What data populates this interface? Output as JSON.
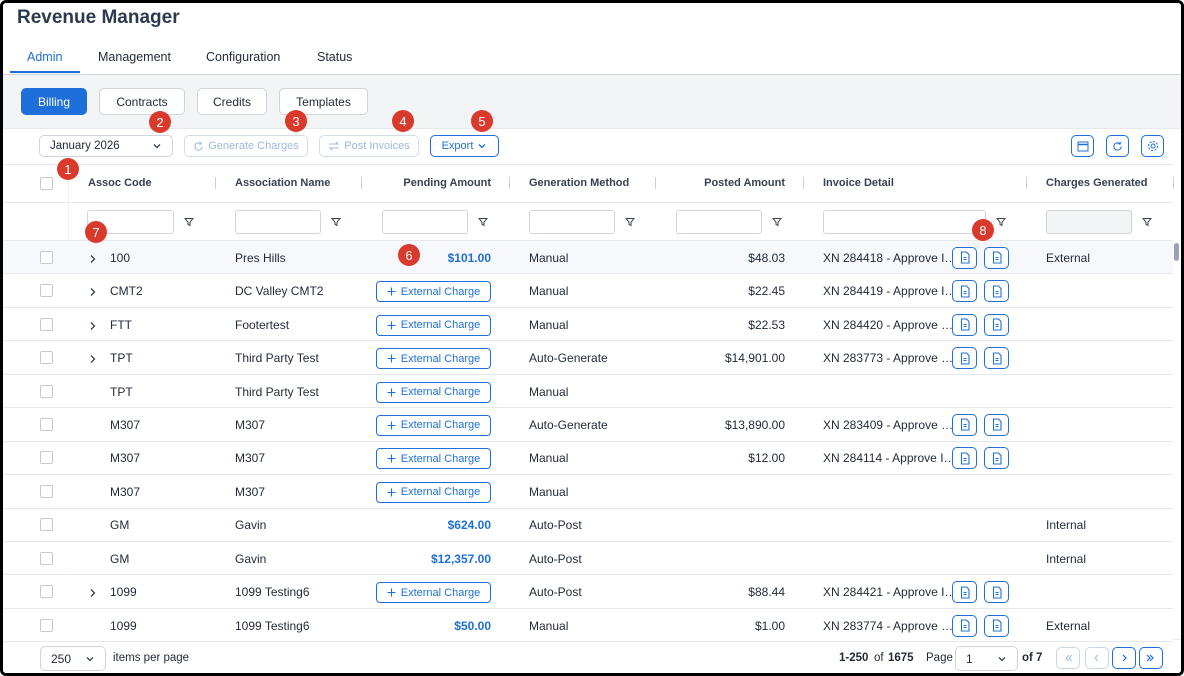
{
  "header": {
    "title": "Revenue Manager"
  },
  "tabs": [
    "Admin",
    "Management",
    "Configuration",
    "Status"
  ],
  "subtabs": [
    "Billing",
    "Contracts",
    "Credits",
    "Templates"
  ],
  "toolbar": {
    "period": "January 2026",
    "generate": "Generate Charges",
    "post": "Post Invoices",
    "export": "Export"
  },
  "callouts": [
    "1",
    "2",
    "3",
    "4",
    "5",
    "6",
    "7",
    "8"
  ],
  "table": {
    "columns": [
      "Assoc Code",
      "Association Name",
      "Pending Amount",
      "Generation Method",
      "Posted Amount",
      "Invoice Detail",
      "Charges Generated"
    ],
    "external_charge": "External Charge",
    "rows": [
      {
        "expand": true,
        "code": "100",
        "name": "Pres Hills",
        "pending": "$101.00",
        "method": "Manual",
        "posted": "$48.03",
        "invoice": "XN 284418 - Approve I…",
        "charges": "External"
      },
      {
        "expand": true,
        "code": "CMT2",
        "name": "DC Valley CMT2",
        "pending": null,
        "method": "Manual",
        "posted": "$22.45",
        "invoice": "XN 284419 - Approve I…",
        "charges": null
      },
      {
        "expand": true,
        "code": "FTT",
        "name": "Footertest",
        "pending": null,
        "method": "Manual",
        "posted": "$22.53",
        "invoice": "XN 284420 - Approve …",
        "charges": null
      },
      {
        "expand": true,
        "code": "TPT",
        "name": "Third Party Test",
        "pending": null,
        "method": "Auto-Generate",
        "posted": "$14,901.00",
        "invoice": "XN 283773 - Approve …",
        "charges": null
      },
      {
        "expand": false,
        "code": "TPT",
        "name": "Third Party Test",
        "pending": null,
        "method": "Manual",
        "posted": null,
        "invoice": null,
        "charges": null
      },
      {
        "expand": false,
        "code": "M307",
        "name": "M307",
        "pending": null,
        "method": "Auto-Generate",
        "posted": "$13,890.00",
        "invoice": "XN 283409 - Approve …",
        "charges": null
      },
      {
        "expand": false,
        "code": "M307",
        "name": "M307",
        "pending": null,
        "method": "Manual",
        "posted": "$12.00",
        "invoice": "XN 284114 - Approve I…",
        "charges": null
      },
      {
        "expand": false,
        "code": "M307",
        "name": "M307",
        "pending": null,
        "method": "Manual",
        "posted": null,
        "invoice": null,
        "charges": null
      },
      {
        "expand": false,
        "code": "GM",
        "name": "Gavin",
        "pending": "$624.00",
        "method": "Auto-Post",
        "posted": null,
        "invoice": null,
        "charges": "Internal"
      },
      {
        "expand": false,
        "code": "GM",
        "name": "Gavin",
        "pending": "$12,357.00",
        "method": "Auto-Post",
        "posted": null,
        "invoice": null,
        "charges": "Internal"
      },
      {
        "expand": true,
        "code": "1099",
        "name": "1099 Testing6",
        "pending": null,
        "method": "Auto-Post",
        "posted": "$88.44",
        "invoice": "XN 284421 - Approve I…",
        "charges": null
      },
      {
        "expand": false,
        "code": "1099",
        "name": "1099 Testing6",
        "pending": "$50.00",
        "method": "Manual",
        "posted": "$1.00",
        "invoice": "XN 283774 - Approve …",
        "charges": "External"
      }
    ]
  },
  "footer": {
    "page_size": "250",
    "items_per_page": "items per page",
    "range": "1-250",
    "range_of": "of",
    "total": "1675",
    "page_label": "Page",
    "page": "1",
    "page_count": "of 7"
  }
}
